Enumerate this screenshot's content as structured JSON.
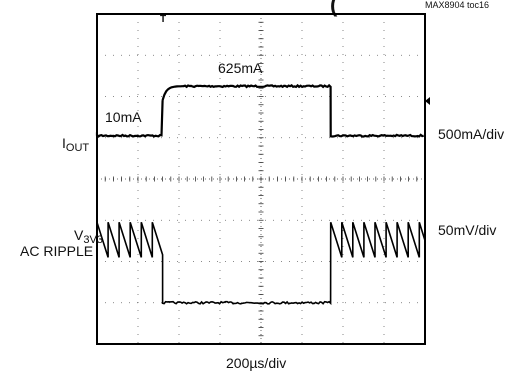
{
  "chart_data": {
    "type": "line",
    "header_text": "(",
    "figure_id": "MAX8904 toc16",
    "x_scale_label": "200µs/div",
    "grid": true,
    "divisions": {
      "x": 8,
      "y": 8
    },
    "trigger_marker": "T",
    "series": [
      {
        "name": "IOUT",
        "label_main": "I",
        "label_sub": "OUT",
        "scale_label": "500mA/div",
        "annotations": {
          "low": "10mA",
          "high": "625mA"
        },
        "step_rise_div": 1.6,
        "step_fall_div": 5.7
      },
      {
        "name": "V3V3 AC RIPPLE",
        "label_main": "V",
        "label_sub": "3V3",
        "label_line2": "AC RIPPLE",
        "scale_label": "50mV/div",
        "ripple_period_div": 0.27,
        "drop_start_div": 1.6,
        "drop_end_div": 5.7
      }
    ]
  }
}
